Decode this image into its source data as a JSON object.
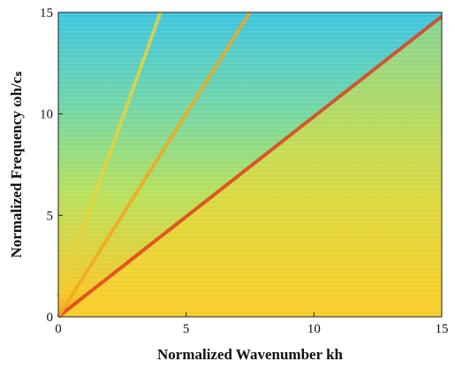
{
  "chart_data": {
    "type": "heatmap",
    "xlabel": "Normalized Wavenumber kh",
    "ylabel": "Normalized Frequency ωh/cₛ",
    "xlim": [
      0,
      15
    ],
    "ylim": [
      0,
      15
    ],
    "xticks": [
      0,
      5,
      10,
      15
    ],
    "yticks": [
      0,
      5,
      10,
      15
    ],
    "ridges": [
      {
        "color": "#e0401a",
        "x": [
          0,
          15
        ],
        "values": [
          0,
          14.8
        ]
      },
      {
        "color": "#f2a81e",
        "x": [
          0,
          7.5
        ],
        "values": [
          0,
          15
        ]
      },
      {
        "color": "#e8d23a",
        "x": [
          0,
          4
        ],
        "values": [
          1,
          15
        ]
      }
    ]
  }
}
